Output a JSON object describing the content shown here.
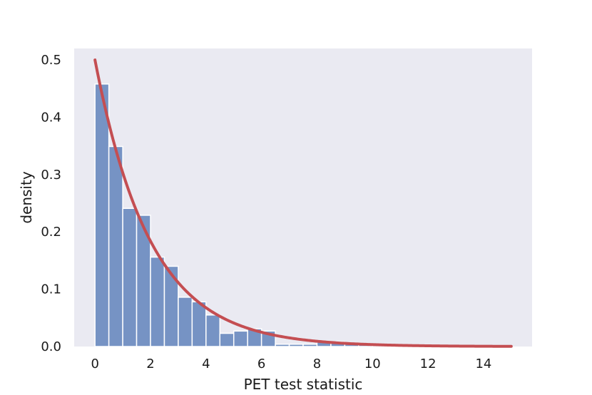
{
  "chart_data": {
    "type": "bar",
    "xlabel": "PET test statistic",
    "ylabel": "density",
    "xlim": [
      -0.75,
      15.75
    ],
    "ylim": [
      0,
      0.52
    ],
    "grid": false,
    "background_color": "#eaeaf2",
    "bar_color": "#7693c4",
    "curve_color": "#c44e52",
    "x_ticks": [
      0,
      2,
      4,
      6,
      8,
      10,
      12,
      14
    ],
    "y_ticks": [
      0.0,
      0.1,
      0.2,
      0.3,
      0.4,
      0.5
    ],
    "x_tick_labels": [
      "0",
      "2",
      "4",
      "6",
      "8",
      "10",
      "12",
      "14"
    ],
    "y_tick_labels": [
      "0.0",
      "0.1",
      "0.2",
      "0.3",
      "0.4",
      "0.5"
    ],
    "histogram": {
      "bin_width": 0.5,
      "bin_starts": [
        0,
        0.5,
        1.0,
        1.5,
        2.0,
        2.5,
        3.0,
        3.5,
        4.0,
        4.5,
        5.0,
        5.5,
        6.0,
        6.5,
        7.0,
        7.5,
        8.0,
        8.5,
        9.0,
        9.5,
        10.0,
        10.5,
        11.0,
        11.5,
        12.0,
        12.5,
        13.0,
        13.5,
        14.0,
        14.5
      ],
      "values": [
        0.458,
        0.349,
        0.241,
        0.229,
        0.156,
        0.14,
        0.086,
        0.078,
        0.055,
        0.023,
        0.027,
        0.031,
        0.027,
        0.004,
        0.004,
        0.004,
        0.008,
        0.008,
        0.004,
        0.004,
        0.0,
        0.0,
        0.0,
        0.0,
        0.0,
        0.0,
        0.0,
        0.0,
        0.0,
        0.0
      ]
    },
    "curve": {
      "type": "exponential density",
      "x_range": [
        0,
        15
      ],
      "lambda": 0.5
    }
  }
}
